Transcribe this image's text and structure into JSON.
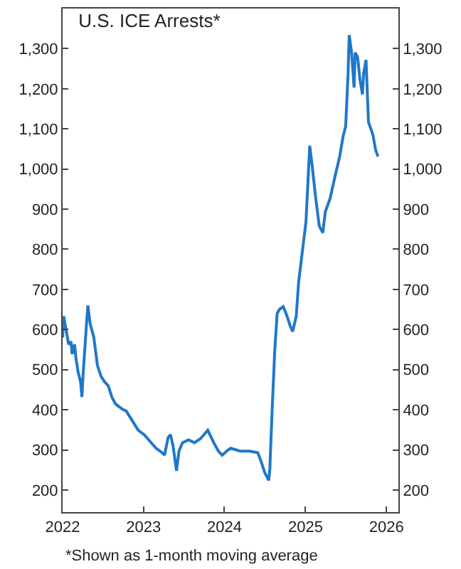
{
  "chart_data": {
    "type": "line",
    "title": "U.S. ICE Arrests*",
    "annotations": [
      "*Shown as 1-month moving average"
    ],
    "x": [
      "2022-01-01",
      "2022-01-06",
      "2022-01-17",
      "2022-01-28",
      "2022-02-08",
      "2022-02-13",
      "2022-02-24",
      "2022-03-02",
      "2022-03-12",
      "2022-03-23",
      "2022-03-29",
      "2022-04-03",
      "2022-04-19",
      "2022-04-25",
      "2022-05-05",
      "2022-05-22",
      "2022-06-07",
      "2022-06-23",
      "2022-07-09",
      "2022-07-26",
      "2022-08-11",
      "2022-08-27",
      "2022-09-12",
      "2022-09-29",
      "2022-10-15",
      "2022-11-11",
      "2022-12-08",
      "2023-01-04",
      "2023-01-31",
      "2023-02-27",
      "2023-03-26",
      "2023-04-06",
      "2023-04-22",
      "2023-05-03",
      "2023-05-14",
      "2023-05-30",
      "2023-06-10",
      "2023-06-26",
      "2023-07-23",
      "2023-08-19",
      "2023-09-15",
      "2023-10-18",
      "2023-11-14",
      "2023-12-05",
      "2023-12-22",
      "2024-01-18",
      "2024-01-29",
      "2024-03-12",
      "2024-04-23",
      "2024-05-31",
      "2024-06-16",
      "2024-07-02",
      "2024-07-19",
      "2024-07-24",
      "2024-08-04",
      "2024-08-15",
      "2024-08-26",
      "2024-09-05",
      "2024-09-22",
      "2024-10-08",
      "2024-10-24",
      "2024-11-04",
      "2024-11-20",
      "2024-12-01",
      "2025-01-03",
      "2025-01-20",
      "2025-01-30",
      "2025-02-16",
      "2025-03-04",
      "2025-03-20",
      "2025-03-31",
      "2025-04-22",
      "2025-05-13",
      "2025-06-04",
      "2025-06-20",
      "2025-07-01",
      "2025-07-12",
      "2025-07-17",
      "2025-07-28",
      "2025-08-08",
      "2025-08-13",
      "2025-08-24",
      "2025-09-04",
      "2025-09-15",
      "2025-09-20",
      "2025-10-01",
      "2025-10-12",
      "2025-10-23",
      "2025-11-02",
      "2025-11-13",
      "2025-11-24"
    ],
    "series": [
      {
        "color": "#1f78c8",
        "values": [
          580,
          633,
          598,
          563,
          570,
          539,
          563,
          529,
          494,
          470,
          432,
          484,
          615,
          660,
          615,
          580,
          511,
          484,
          470,
          460,
          432,
          415,
          408,
          401,
          397,
          373,
          349,
          338,
          321,
          304,
          293,
          287,
          331,
          338,
          311,
          248,
          297,
          318,
          325,
          318,
          328,
          349,
          318,
          297,
          287,
          300,
          304,
          297,
          297,
          293,
          269,
          242,
          224,
          252,
          408,
          546,
          640,
          650,
          657,
          636,
          609,
          595,
          633,
          719,
          868,
          1058,
          1013,
          927,
          858,
          841,
          893,
          927,
          979,
          1031,
          1083,
          1106,
          1238,
          1334,
          1290,
          1203,
          1290,
          1279,
          1221,
          1186,
          1238,
          1272,
          1117,
          1100,
          1083,
          1048,
          1031
        ]
      }
    ],
    "xlim": [
      "2022-01-01",
      "2026-02-24"
    ],
    "xticks": [
      {
        "value": "2022-01-01",
        "label": "2022"
      },
      {
        "value": "2023-01-01",
        "label": "2023"
      },
      {
        "value": "2024-01-01",
        "label": "2024"
      },
      {
        "value": "2025-01-01",
        "label": "2025"
      },
      {
        "value": "2026-01-01",
        "label": "2026"
      }
    ],
    "ylim": [
      145,
      1400
    ],
    "yticks": [
      200,
      300,
      400,
      500,
      600,
      700,
      800,
      900,
      {
        "value": 1000,
        "label": "1,000"
      },
      {
        "value": 1100,
        "label": "1,100"
      },
      {
        "value": 1200,
        "label": "1,200"
      },
      {
        "value": 1300,
        "label": "1,300"
      }
    ],
    "y2lim": [
      145,
      1400
    ],
    "y2ticks": [
      200,
      300,
      400,
      500,
      600,
      700,
      800,
      900,
      {
        "value": 1000,
        "label": "1,000"
      },
      {
        "value": 1100,
        "label": "1,100"
      },
      {
        "value": 1200,
        "label": "1,200"
      },
      {
        "value": 1300,
        "label": "1,300"
      }
    ],
    "grid": false,
    "legend": false,
    "marker": "none",
    "line_style": "solid"
  }
}
